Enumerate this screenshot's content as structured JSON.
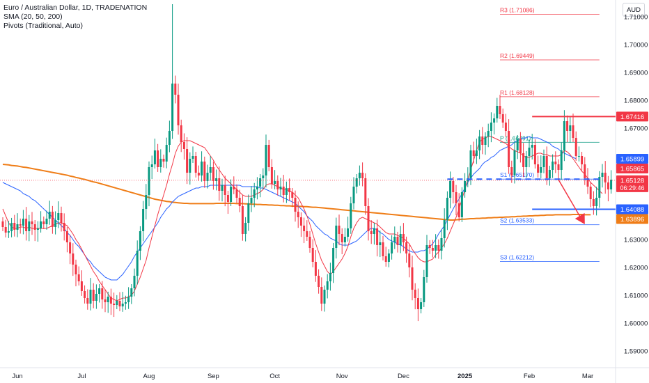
{
  "legend": {
    "symbol": "Euro / Australian Dollar, 1D, TRADENATION",
    "sma": "SMA (20, 50, 200)",
    "pivots": "Pivots (Traditional, Auto)"
  },
  "currency_button": "AUD",
  "chart_data": {
    "type": "candlestick",
    "title": "Euro / Australian Dollar, 1D, TRADENATION",
    "y_axis": {
      "currency": "AUD",
      "ticks": [
        "1.71000",
        "1.70000",
        "1.69000",
        "1.68000",
        "1.67000",
        "1.66000",
        "1.65000",
        "1.64000",
        "1.63000",
        "1.62000",
        "1.61000",
        "1.60000",
        "1.59000"
      ],
      "range": [
        1.584,
        1.716
      ]
    },
    "x_axis": {
      "ticks": [
        {
          "label": "Jun",
          "index": 5
        },
        {
          "label": "Jul",
          "index": 27
        },
        {
          "label": "Aug",
          "index": 50
        },
        {
          "label": "Sep",
          "index": 72
        },
        {
          "label": "Oct",
          "index": 93
        },
        {
          "label": "Nov",
          "index": 116
        },
        {
          "label": "Dec",
          "index": 137
        },
        {
          "label": "2025",
          "index": 158
        },
        {
          "label": "Feb",
          "index": 180
        },
        {
          "label": "Mar",
          "index": 200
        }
      ]
    },
    "up_color": "#089981",
    "down_color": "#f23645",
    "closes": [
      1.6345,
      1.6325,
      1.633,
      1.636,
      1.6335,
      1.6355,
      1.635,
      1.6375,
      1.633,
      1.6365,
      1.6355,
      1.6335,
      1.634,
      1.6365,
      1.6355,
      1.6375,
      1.64,
      1.6345,
      1.637,
      1.6395,
      1.636,
      1.633,
      1.629,
      1.625,
      1.621,
      1.6175,
      1.615,
      1.6115,
      1.609,
      1.607,
      1.612,
      1.608,
      1.6105,
      1.6125,
      1.6085,
      1.6075,
      1.6095,
      1.607,
      1.6065,
      1.608,
      1.606,
      1.607,
      1.6075,
      1.6095,
      1.6125,
      1.617,
      1.626,
      1.633,
      1.641,
      1.646,
      1.656,
      1.657,
      1.662,
      1.656,
      1.659,
      1.658,
      1.664,
      1.669,
      1.686,
      1.682,
      1.671,
      1.665,
      1.6625,
      1.654,
      1.659,
      1.66,
      1.654,
      1.653,
      1.658,
      1.651,
      1.654,
      1.656,
      1.651,
      1.652,
      1.6475,
      1.6495,
      1.646,
      1.6435,
      1.649,
      1.648,
      1.645,
      1.642,
      1.632,
      1.636,
      1.643,
      1.645,
      1.648,
      1.649,
      1.652,
      1.653,
      1.664,
      1.656,
      1.65,
      1.651,
      1.648,
      1.649,
      1.646,
      1.6485,
      1.647,
      1.645,
      1.64,
      1.638,
      1.635,
      1.633,
      1.631,
      1.627,
      1.622,
      1.617,
      1.613,
      1.607,
      1.612,
      1.615,
      1.618,
      1.627,
      1.635,
      1.632,
      1.629,
      1.631,
      1.634,
      1.643,
      1.649,
      1.652,
      1.654,
      1.652,
      1.642,
      1.633,
      1.632,
      1.634,
      1.628,
      1.629,
      1.624,
      1.622,
      1.625,
      1.629,
      1.631,
      1.628,
      1.632,
      1.629,
      1.625,
      1.62,
      1.612,
      1.609,
      1.605,
      1.6075,
      1.6165,
      1.628,
      1.627,
      1.626,
      1.628,
      1.626,
      1.6305,
      1.637,
      1.645,
      1.651,
      1.647,
      1.643,
      1.638,
      1.647,
      1.651,
      1.652,
      1.662,
      1.66,
      1.662,
      1.667,
      1.664,
      1.667,
      1.669,
      1.672,
      1.6735,
      1.678,
      1.675,
      1.672,
      1.669,
      1.656,
      1.653,
      1.662,
      1.666,
      1.661,
      1.656,
      1.66,
      1.663,
      1.664,
      1.657,
      1.654,
      1.656,
      1.66,
      1.652,
      1.655,
      1.658,
      1.657,
      1.655,
      1.662,
      1.6725,
      1.669,
      1.671,
      1.6665,
      1.66,
      1.66,
      1.657,
      1.652,
      1.649,
      1.6445,
      1.642,
      1.645,
      1.6525,
      1.654,
      1.6505,
      1.648,
      1.6515
    ],
    "sma20": [
      1.641,
      1.6385,
      1.636,
      1.6345,
      1.634,
      1.634,
      1.6345,
      1.6345,
      1.634,
      1.6345,
      1.634,
      1.634,
      1.634,
      1.634,
      1.634,
      1.634,
      1.6345,
      1.635,
      1.6355,
      1.636,
      1.636,
      1.6355,
      1.635,
      1.6335,
      1.632,
      1.63,
      1.6285,
      1.6265,
      1.6245,
      1.6225,
      1.6205,
      1.6185,
      1.617,
      1.615,
      1.6135,
      1.612,
      1.6105,
      1.609,
      1.6085,
      1.608,
      1.6085,
      1.609,
      1.609,
      1.6095,
      1.61,
      1.6115,
      1.614,
      1.6165,
      1.6195,
      1.6225,
      1.627,
      1.631,
      1.635,
      1.639,
      1.6425,
      1.646,
      1.6495,
      1.6535,
      1.657,
      1.661,
      1.6635,
      1.665,
      1.6655,
      1.6655,
      1.6655,
      1.665,
      1.6645,
      1.664,
      1.6635,
      1.663,
      1.6615,
      1.66,
      1.6585,
      1.6565,
      1.655,
      1.6535,
      1.652,
      1.651,
      1.65,
      1.649,
      1.648,
      1.647,
      1.646,
      1.6455,
      1.6455,
      1.6455,
      1.646,
      1.6465,
      1.647,
      1.648,
      1.6495,
      1.65,
      1.65,
      1.6495,
      1.649,
      1.6485,
      1.648,
      1.648,
      1.6475,
      1.647,
      1.646,
      1.645,
      1.643,
      1.641,
      1.6385,
      1.6355,
      1.632,
      1.6285,
      1.6255,
      1.6225,
      1.6205,
      1.6185,
      1.6175,
      1.6185,
      1.62,
      1.6215,
      1.623,
      1.625,
      1.6275,
      1.631,
      1.634,
      1.636,
      1.6375,
      1.638,
      1.6375,
      1.637,
      1.6365,
      1.636,
      1.6355,
      1.6345,
      1.6335,
      1.6325,
      1.632,
      1.632,
      1.632,
      1.6315,
      1.631,
      1.6305,
      1.6295,
      1.6285,
      1.6265,
      1.625,
      1.6235,
      1.6225,
      1.622,
      1.622,
      1.6225,
      1.623,
      1.6245,
      1.6255,
      1.627,
      1.6285,
      1.6305,
      1.633,
      1.6355,
      1.638,
      1.641,
      1.6445,
      1.648,
      1.6515,
      1.655,
      1.6585,
      1.662,
      1.665,
      1.666,
      1.6665,
      1.667,
      1.667,
      1.6665,
      1.666,
      1.6655,
      1.665,
      1.6645,
      1.6635,
      1.6625,
      1.662,
      1.6615,
      1.661,
      1.66,
      1.6595,
      1.6595,
      1.66,
      1.6605,
      1.661,
      1.661,
      1.6605,
      1.6605,
      1.66,
      1.66,
      1.66,
      1.66,
      1.6605,
      1.662,
      1.6615,
      1.6605,
      1.659,
      1.6575,
      1.656,
      1.6545,
      1.6535,
      1.652,
      1.6505,
      1.6495,
      1.6485,
      1.6475,
      1.6465
    ],
    "sma50": [
      1.6505,
      1.65,
      1.6495,
      1.649,
      1.6485,
      1.648,
      1.6475,
      1.6465,
      1.646,
      1.6455,
      1.6445,
      1.644,
      1.643,
      1.642,
      1.641,
      1.64,
      1.639,
      1.638,
      1.637,
      1.636,
      1.635,
      1.634,
      1.6325,
      1.6315,
      1.63,
      1.6285,
      1.6275,
      1.626,
      1.6245,
      1.623,
      1.622,
      1.6205,
      1.6195,
      1.6185,
      1.6175,
      1.6165,
      1.616,
      1.6155,
      1.6155,
      1.6155,
      1.6165,
      1.6175,
      1.619,
      1.6205,
      1.622,
      1.624,
      1.6255,
      1.627,
      1.6285,
      1.63,
      1.6315,
      1.633,
      1.6345,
      1.636,
      1.638,
      1.6395,
      1.641,
      1.642,
      1.6435,
      1.6445,
      1.6455,
      1.646,
      1.6465,
      1.647,
      1.6475,
      1.648,
      1.6485,
      1.6485,
      1.649,
      1.649,
      1.649,
      1.6495,
      1.6495,
      1.6495,
      1.6495,
      1.6495,
      1.6495,
      1.6495,
      1.6495,
      1.6495,
      1.6495,
      1.6495,
      1.649,
      1.649,
      1.649,
      1.649,
      1.649,
      1.649,
      1.6485,
      1.6485,
      1.648,
      1.6475,
      1.647,
      1.6465,
      1.646,
      1.6455,
      1.645,
      1.6445,
      1.644,
      1.6435,
      1.643,
      1.642,
      1.641,
      1.64,
      1.6385,
      1.6375,
      1.6365,
      1.635,
      1.634,
      1.633,
      1.632,
      1.6315,
      1.6305,
      1.63,
      1.6295,
      1.6285,
      1.628,
      1.628,
      1.628,
      1.6285,
      1.629,
      1.6295,
      1.6305,
      1.6315,
      1.6325,
      1.6335,
      1.634,
      1.634,
      1.6335,
      1.6325,
      1.632,
      1.631,
      1.63,
      1.6295,
      1.629,
      1.6285,
      1.628,
      1.6275,
      1.6265,
      1.626,
      1.6255,
      1.6255,
      1.6255,
      1.626,
      1.626,
      1.6265,
      1.6275,
      1.6285,
      1.63,
      1.632,
      1.6335,
      1.635,
      1.637,
      1.639,
      1.641,
      1.643,
      1.6445,
      1.6465,
      1.6485,
      1.6505,
      1.652,
      1.6535,
      1.6545,
      1.6555,
      1.657,
      1.658,
      1.6585,
      1.6595,
      1.66,
      1.661,
      1.662,
      1.6625,
      1.663,
      1.6635,
      1.664,
      1.665,
      1.6655,
      1.666,
      1.6665,
      1.6665,
      1.667,
      1.6665,
      1.6665,
      1.6665,
      1.666,
      1.6655,
      1.665,
      1.6645,
      1.6635,
      1.663,
      1.6625,
      1.6615,
      1.661,
      1.6605,
      1.66,
      1.6595,
      1.659
    ],
    "sma200": [
      1.657,
      1.6569,
      1.6568,
      1.6566,
      1.6565,
      1.6564,
      1.6562,
      1.656,
      1.6559,
      1.6557,
      1.6555,
      1.6553,
      1.6551,
      1.6549,
      1.6547,
      1.6545,
      1.6543,
      1.6541,
      1.6539,
      1.6537,
      1.6535,
      1.6533,
      1.6531,
      1.6528,
      1.6526,
      1.6523,
      1.6521,
      1.6518,
      1.6516,
      1.6513,
      1.651,
      1.6507,
      1.6505,
      1.6502,
      1.6499,
      1.6496,
      1.6493,
      1.649,
      1.6487,
      1.6484,
      1.6481,
      1.6478,
      1.6475,
      1.6472,
      1.6469,
      1.6466,
      1.6463,
      1.646,
      1.6457,
      1.6454,
      1.6451,
      1.6448,
      1.6445,
      1.6443,
      1.6441,
      1.6439,
      1.6437,
      1.6436,
      1.6434,
      1.6433,
      1.6432,
      1.6431,
      1.643,
      1.643,
      1.6429,
      1.6429,
      1.6429,
      1.6429,
      1.6429,
      1.6429,
      1.6429,
      1.6429,
      1.6429,
      1.643,
      1.643,
      1.643,
      1.643,
      1.643,
      1.643,
      1.643,
      1.6429,
      1.6429,
      1.6429,
      1.6428,
      1.6428,
      1.6427,
      1.6427,
      1.6426,
      1.6426,
      1.6425,
      1.6425,
      1.6424,
      1.6424,
      1.6423,
      1.6423,
      1.6422,
      1.6422,
      1.6421,
      1.6421,
      1.642,
      1.642,
      1.6419,
      1.6419,
      1.6418,
      1.6418,
      1.6417,
      1.6416,
      1.6416,
      1.6415,
      1.6414,
      1.6413,
      1.6412,
      1.6411,
      1.641,
      1.6409,
      1.6408,
      1.6407,
      1.6406,
      1.6405,
      1.6404,
      1.6403,
      1.6402,
      1.6401,
      1.64,
      1.6399,
      1.6398,
      1.6397,
      1.6396,
      1.6395,
      1.6394,
      1.6393,
      1.6392,
      1.6391,
      1.639,
      1.6389,
      1.6388,
      1.6387,
      1.6386,
      1.6385,
      1.6384,
      1.6383,
      1.6382,
      1.6381,
      1.638,
      1.6379,
      1.6378,
      1.6377,
      1.6376,
      1.6375,
      1.6374,
      1.6373,
      1.6372,
      1.6371,
      1.637,
      1.637,
      1.6371,
      1.6372,
      1.6373,
      1.6373,
      1.6374,
      1.6375,
      1.6375,
      1.6376,
      1.6376,
      1.6377,
      1.6377,
      1.6378,
      1.6378,
      1.6379,
      1.6379,
      1.638,
      1.638,
      1.6381,
      1.6381,
      1.6382,
      1.6382,
      1.6383,
      1.6383,
      1.6384,
      1.6384,
      1.6385,
      1.6385,
      1.6386,
      1.6386,
      1.6387,
      1.6387,
      1.6388,
      1.6388,
      1.6388,
      1.6389,
      1.6389,
      1.6389,
      1.6389,
      1.6389,
      1.6389,
      1.639,
      1.639,
      1.639,
      1.639,
      1.6389,
      1.6389,
      1.6389
    ],
    "pivots": [
      {
        "label": "R3 (1.71086)",
        "value": 1.71086,
        "color": "#f23645"
      },
      {
        "label": "R2 (1.69449)",
        "value": 1.69449,
        "color": "#f23645"
      },
      {
        "label": "R1 (1.68128)",
        "value": 1.68128,
        "color": "#f23645"
      },
      {
        "label": "P (1.66491)",
        "value": 1.66491,
        "color": "#089981"
      },
      {
        "label": "S1 (1.65170)",
        "value": 1.6517,
        "color": "#2962ff"
      },
      {
        "label": "S2 (1.63533)",
        "value": 1.63533,
        "color": "#2962ff"
      },
      {
        "label": "S3 (1.62212)",
        "value": 1.62212,
        "color": "#2962ff"
      }
    ],
    "horizontal_levels": [
      {
        "value": 1.67416,
        "color": "#f23645"
      },
      {
        "value": 1.64088,
        "color": "#2962ff"
      }
    ],
    "price_labels": [
      {
        "value": 1.67416,
        "text": "1.67416",
        "bg": "#f23645",
        "fg": "#ffffff"
      },
      {
        "value": 1.65899,
        "text": "1.65899",
        "bg": "#2962ff",
        "fg": "#ffffff"
      },
      {
        "value": 1.65865,
        "text": "1.65865",
        "bg": "#f23645",
        "fg": "#ffffff"
      },
      {
        "value": 1.65128,
        "text": "1.65128",
        "sub": "06:29:46",
        "bg": "#f23645",
        "fg": "#ffffff"
      },
      {
        "value": 1.64088,
        "text": "1.64088",
        "bg": "#2962ff",
        "fg": "#ffffff"
      },
      {
        "value": 1.63896,
        "text": "1.63896",
        "bg": "#ef7d17",
        "fg": "#ffffff"
      }
    ],
    "sma_colors": {
      "sma20": "#f23645",
      "sma50": "#2962ff",
      "sma200": "#ef7d17"
    },
    "last_price_line": 1.65128,
    "arrow": {
      "from_index": 190,
      "from_value": 1.6515,
      "to_index": 199,
      "to_value": 1.6355,
      "color": "#f23645"
    }
  }
}
